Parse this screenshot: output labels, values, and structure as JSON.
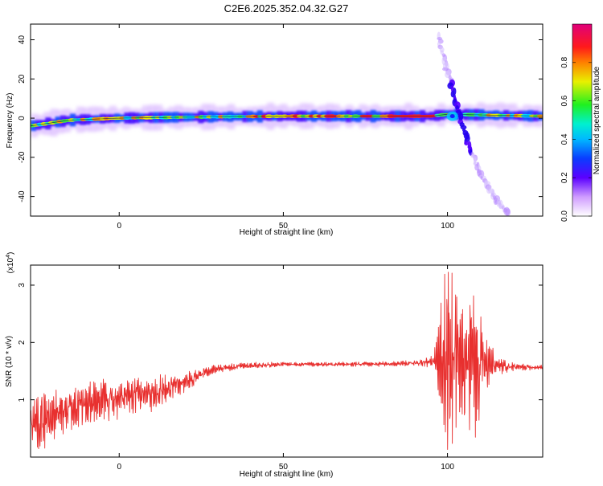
{
  "title": "C2E6.2025.352.04.32.G27",
  "colors": {
    "snr_line": "#e8302f",
    "ridge_core": "#e0283a",
    "background": "#ffffff",
    "axis": "#000000"
  },
  "chart_data": [
    {
      "type": "heatmap",
      "xlabel": "Height of straight line (km)",
      "ylabel": "Frequency (Hz)",
      "xlim": [
        -27,
        129
      ],
      "ylim": [
        -50,
        48
      ],
      "xticks": [
        0,
        50,
        100
      ],
      "yticks": [
        -40,
        -20,
        0,
        20,
        40
      ],
      "colorbar": {
        "label": "Normalized spectral amplitude",
        "range": [
          0,
          1
        ],
        "ticks": [
          0.0,
          0.2,
          0.4,
          0.6,
          0.8
        ],
        "colormap": "white-violet-blue-cyan-green-yellow-red-magenta"
      },
      "features": {
        "main_ridge": {
          "x": [
            -27,
            -15,
            0,
            20,
            50,
            70,
            95,
            100,
            129
          ],
          "y": [
            -4,
            -1,
            0,
            0.5,
            1,
            1,
            1,
            2,
            1
          ]
        },
        "crossing_streak": {
          "x": [
            97,
            100,
            103,
            106,
            110,
            115,
            118
          ],
          "y": [
            42,
            24,
            6,
            -12,
            -28,
            -42,
            -48
          ]
        }
      },
      "grid": false,
      "legend": "colorbar-right"
    },
    {
      "type": "line",
      "xlabel": "Height of straight line (km)",
      "ylabel": "SNR (10 * v/v)",
      "yscale_label": "(x10",
      "yscale_exp": "4",
      "xlim": [
        -27,
        129
      ],
      "ylim": [
        0,
        3.35
      ],
      "xticks": [
        0,
        50,
        100
      ],
      "yticks": [
        1,
        2,
        3
      ],
      "envelope": {
        "x": [
          -27,
          -20,
          -10,
          0,
          10,
          20,
          25,
          30,
          40,
          50,
          60,
          70,
          80,
          90,
          95,
          98,
          100,
          102,
          104,
          106,
          108,
          110,
          113,
          116,
          120,
          129
        ],
        "y": [
          0.62,
          0.72,
          0.95,
          1.0,
          1.12,
          1.3,
          1.45,
          1.55,
          1.6,
          1.62,
          1.62,
          1.62,
          1.62,
          1.64,
          1.66,
          1.68,
          1.7,
          1.65,
          1.6,
          1.6,
          1.62,
          1.62,
          1.6,
          1.58,
          1.57,
          1.57
        ]
      },
      "amplitude": {
        "x": [
          -27,
          -20,
          -10,
          0,
          10,
          20,
          25,
          30,
          50,
          90,
          95,
          97,
          99,
          101,
          103,
          105,
          107,
          109,
          111,
          113,
          116,
          120,
          129
        ],
        "y": [
          0.45,
          0.45,
          0.35,
          0.3,
          0.28,
          0.16,
          0.1,
          0.06,
          0.03,
          0.04,
          0.09,
          0.4,
          1.25,
          1.6,
          1.1,
          0.9,
          1.2,
          1.05,
          0.6,
          0.3,
          0.12,
          0.06,
          0.03
        ]
      },
      "grid": false,
      "legend": "none"
    }
  ]
}
